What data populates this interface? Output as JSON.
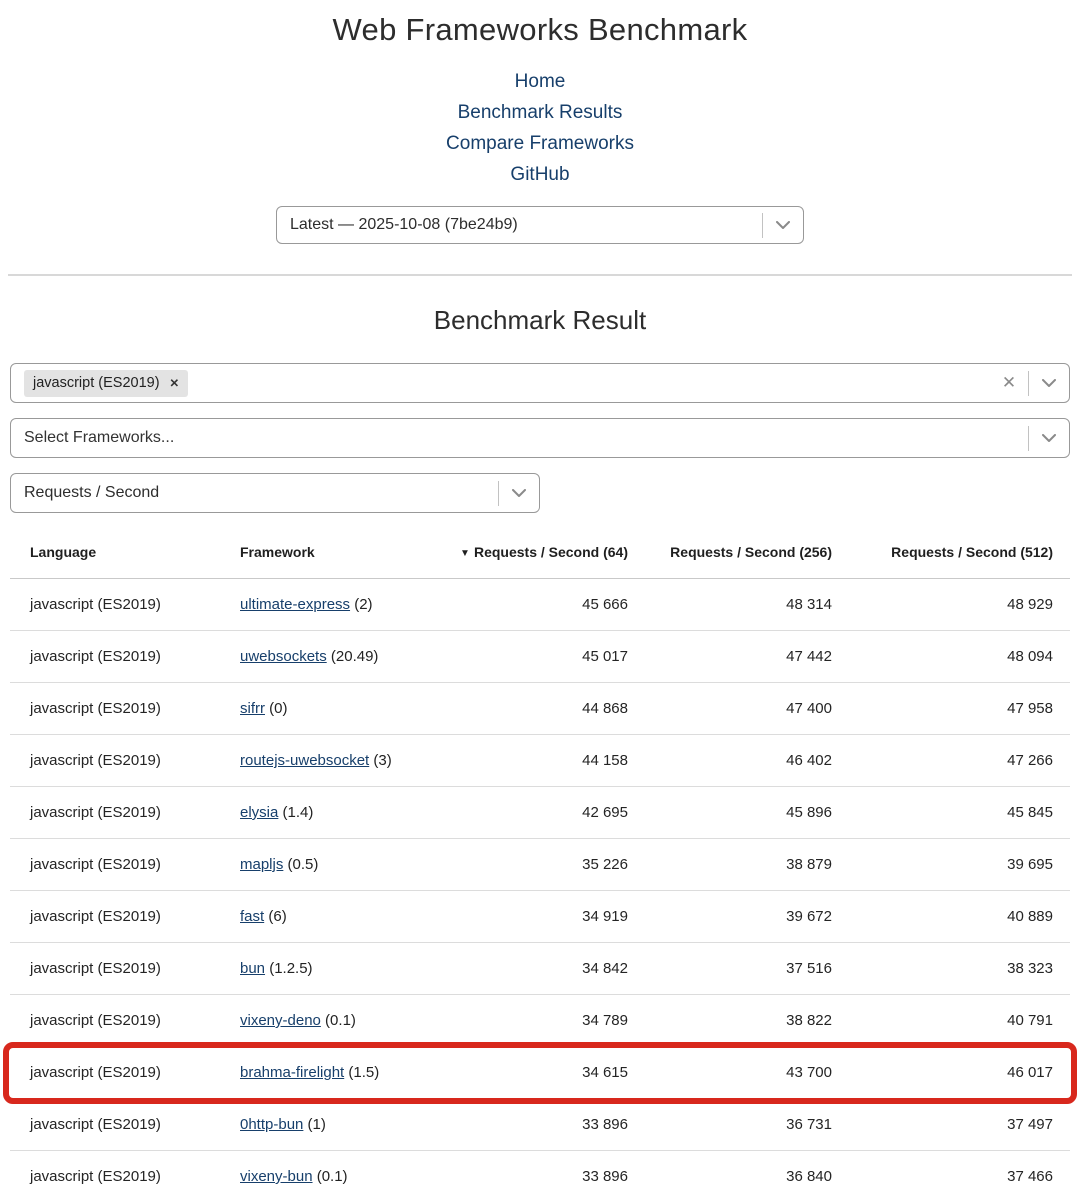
{
  "page": {
    "title": "Web Frameworks Benchmark",
    "section_title": "Benchmark Result"
  },
  "nav": {
    "links": [
      {
        "label": "Home"
      },
      {
        "label": "Benchmark Results"
      },
      {
        "label": "Compare Frameworks"
      },
      {
        "label": "GitHub"
      }
    ]
  },
  "version_select": {
    "value": "Latest — 2025-10-08 (7be24b9)",
    "chevron_icon": "chevron-down"
  },
  "filters": {
    "language_select": {
      "selected_tag": "javascript (ES2019)",
      "tag_remove_icon": "✕",
      "clear_icon": "✕"
    },
    "framework_select": {
      "placeholder": "Select Frameworks..."
    },
    "metric_select": {
      "value": "Requests / Second"
    }
  },
  "table": {
    "sort_icon": "▼",
    "columns": [
      {
        "label": "Language",
        "align": "left",
        "sorted": false
      },
      {
        "label": "Framework",
        "align": "left",
        "sorted": false
      },
      {
        "label": "Requests / Second (64)",
        "align": "right",
        "sorted": true
      },
      {
        "label": "Requests / Second (256)",
        "align": "right",
        "sorted": false
      },
      {
        "label": "Requests / Second (512)",
        "align": "right",
        "sorted": false
      }
    ],
    "rows": [
      {
        "language": "javascript (ES2019)",
        "framework": "ultimate-express",
        "version": "2",
        "values": [
          "45 666",
          "48 314",
          "48 929"
        ],
        "highlighted": false
      },
      {
        "language": "javascript (ES2019)",
        "framework": "uwebsockets",
        "version": "20.49",
        "values": [
          "45 017",
          "47 442",
          "48 094"
        ],
        "highlighted": false
      },
      {
        "language": "javascript (ES2019)",
        "framework": "sifrr",
        "version": "0",
        "values": [
          "44 868",
          "47 400",
          "47 958"
        ],
        "highlighted": false
      },
      {
        "language": "javascript (ES2019)",
        "framework": "routejs-uwebsocket",
        "version": "3",
        "values": [
          "44 158",
          "46 402",
          "47 266"
        ],
        "highlighted": false
      },
      {
        "language": "javascript (ES2019)",
        "framework": "elysia",
        "version": "1.4",
        "values": [
          "42 695",
          "45 896",
          "45 845"
        ],
        "highlighted": false
      },
      {
        "language": "javascript (ES2019)",
        "framework": "mapljs",
        "version": "0.5",
        "values": [
          "35 226",
          "38 879",
          "39 695"
        ],
        "highlighted": false
      },
      {
        "language": "javascript (ES2019)",
        "framework": "fast",
        "version": "6",
        "values": [
          "34 919",
          "39 672",
          "40 889"
        ],
        "highlighted": false
      },
      {
        "language": "javascript (ES2019)",
        "framework": "bun",
        "version": "1.2.5",
        "values": [
          "34 842",
          "37 516",
          "38 323"
        ],
        "highlighted": false
      },
      {
        "language": "javascript (ES2019)",
        "framework": "vixeny-deno",
        "version": "0.1",
        "values": [
          "34 789",
          "38 822",
          "40 791"
        ],
        "highlighted": false
      },
      {
        "language": "javascript (ES2019)",
        "framework": "brahma-firelight",
        "version": "1.5",
        "values": [
          "34 615",
          "43 700",
          "46 017"
        ],
        "highlighted": true
      },
      {
        "language": "javascript (ES2019)",
        "framework": "0http-bun",
        "version": "1",
        "values": [
          "33 896",
          "36 731",
          "37 497"
        ],
        "highlighted": false
      },
      {
        "language": "javascript (ES2019)",
        "framework": "vixeny-bun",
        "version": "0.1",
        "values": [
          "33 896",
          "36 840",
          "37 466"
        ],
        "highlighted": false
      }
    ]
  },
  "colors": {
    "link": "#173f6b",
    "highlight_border": "#d8281d",
    "tag_background": "#e3e3e3"
  }
}
